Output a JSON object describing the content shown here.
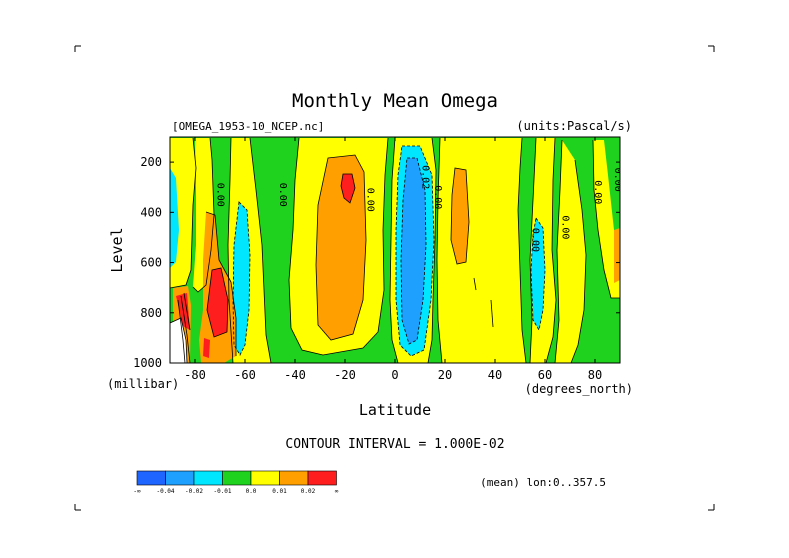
{
  "chart_data": {
    "type": "contour",
    "title": "Monthly Mean Omega",
    "source": "[OMEGA_1953-10_NCEP.nc]",
    "units": "(units:Pascal/s)",
    "xlabel": "Latitude",
    "xunits": "(degrees_north)",
    "ylabel": "Level",
    "yunits": "(millibar)",
    "xlim": [
      -90,
      90
    ],
    "ylim": [
      1000,
      100
    ],
    "x_ticks": [
      -80,
      -60,
      -40,
      -20,
      0,
      20,
      40,
      60,
      80
    ],
    "x_tick_labels": [
      "-80",
      "-60",
      "-40",
      "-20",
      "0",
      "20",
      "40",
      "60",
      "80"
    ],
    "y_ticks": [
      200,
      400,
      600,
      800,
      1000
    ],
    "y_tick_labels": [
      "200",
      "400",
      "600",
      "800",
      "1000"
    ],
    "contour_interval_text": "CONTOUR INTERVAL = 1.000E-02",
    "mean_text": "(mean) lon:0..357.5",
    "legend_colors": [
      "#1e64ff",
      "#1ea0ff",
      "#00e6ff",
      "#1ed21e",
      "#ffff00",
      "#ffa000",
      "#ff1e1e"
    ],
    "legend_labels": [
      "-∞",
      "-0.04",
      "-0.02",
      "-0.01",
      "0.0",
      "0.01",
      "0.02",
      "∞"
    ],
    "band_levels": {
      "deep_blue": "< -0.04",
      "blue": "-0.04 to -0.02",
      "cyan": "-0.02 to -0.01",
      "green": "-0.01 to 0.0",
      "yellow": "0.0 to 0.01",
      "orange": "0.01 to 0.02",
      "red": "> 0.02"
    },
    "contour_labels": [
      {
        "text": "0.00",
        "lat": -71,
        "level": 330
      },
      {
        "text": "0.00",
        "lat": -46,
        "level": 330
      },
      {
        "text": "0.00",
        "lat": -11,
        "level": 350
      },
      {
        "text": "0.02",
        "lat": 11,
        "level": 260
      },
      {
        "text": "0.00",
        "lat": 16,
        "level": 340
      },
      {
        "text": "0.00",
        "lat": 55,
        "level": 510
      },
      {
        "text": "0.00",
        "lat": 67,
        "level": 460
      },
      {
        "text": "0.00",
        "lat": 80,
        "level": 320
      },
      {
        "text": "0.00",
        "lat": 88,
        "level": 270
      }
    ]
  }
}
